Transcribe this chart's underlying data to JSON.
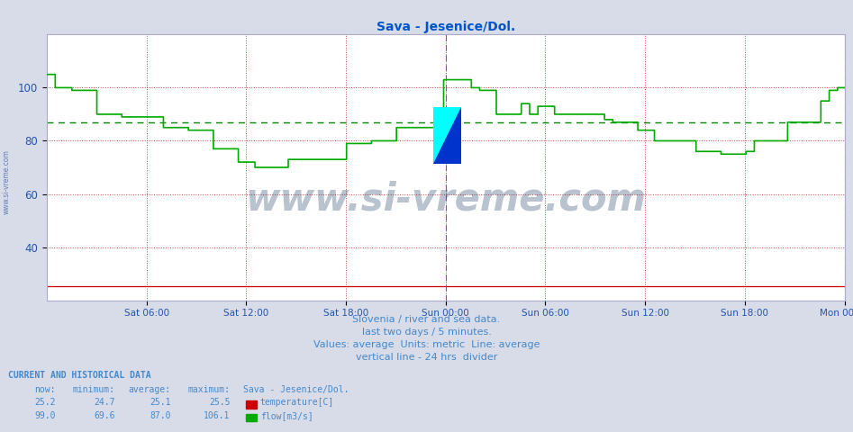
{
  "title": "Sava - Jesenice/Dol.",
  "title_color": "#0055cc",
  "bg_color": "#d8dce8",
  "plot_bg_color": "#ffffff",
  "grid_color_h": "#cc4444",
  "grid_color_v": "#cc4444",
  "grid_style": ":",
  "ylabel_color": "#2255aa",
  "xlabel_color": "#2255aa",
  "flow_color": "#00aa00",
  "temp_color": "#cc0000",
  "flow_avg_color": "#008800",
  "flow_avg_value": 87.0,
  "flow_now": 99.0,
  "flow_min": 69.6,
  "flow_avg": 87.0,
  "flow_max": 106.1,
  "temp_now": 25.2,
  "temp_min": 24.7,
  "temp_avg": 25.1,
  "temp_max": 25.5,
  "ylim_min": 20,
  "ylim_max": 120,
  "subtitle1": "Slovenia / river and sea data.",
  "subtitle2": "last two days / 5 minutes.",
  "subtitle3": "Values: average  Units: metric  Line: average",
  "subtitle4": "vertical line - 24 hrs  divider",
  "subtitle_color": "#4488cc",
  "watermark": "www.si-vreme.com",
  "watermark_color": "#1a3560",
  "legend_title": "Sava - Jesenice/Dol.",
  "info_header": "CURRENT AND HISTORICAL DATA",
  "col_headers": [
    "now:",
    "minimum:",
    "average:",
    "maximum:"
  ],
  "num_points": 576,
  "xtick_positions": [
    6,
    12,
    18,
    24,
    30,
    36,
    42,
    48
  ],
  "xtick_labels": [
    "Sat 06:00",
    "Sat 12:00",
    "Sat 18:00",
    "Sun 00:00",
    "Sun 06:00",
    "Sun 12:00",
    "Sun 18:00",
    "Mon 00:00"
  ],
  "ytick_positions": [
    40,
    60,
    80,
    100
  ],
  "divider_color": "#ff00ff",
  "spine_color": "#aaaacc"
}
